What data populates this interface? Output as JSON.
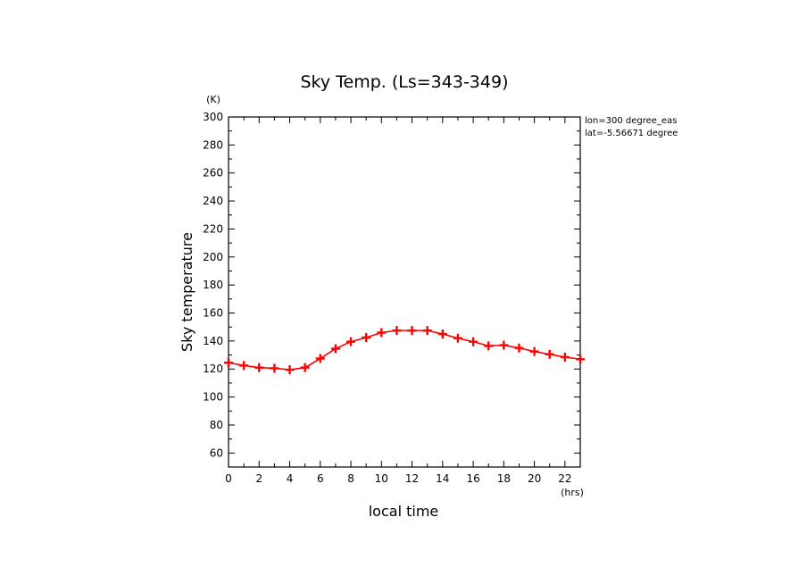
{
  "chart_data": {
    "type": "line",
    "title": "Sky Temp. (Ls=343-349)",
    "xlabel": "local time",
    "ylabel": "Sky temperature",
    "x_unit": "(hrs)",
    "y_unit": "(K)",
    "xlim": [
      0,
      23
    ],
    "ylim": [
      50,
      300
    ],
    "x_ticks": [
      0,
      2,
      4,
      6,
      8,
      10,
      12,
      14,
      16,
      18,
      20,
      22
    ],
    "y_ticks": [
      60,
      80,
      100,
      120,
      140,
      160,
      180,
      200,
      220,
      240,
      260,
      280,
      300
    ],
    "annotations": [
      "lon=300 degree_eas",
      "lat=-5.56671 degree"
    ],
    "grid": false,
    "series": [
      {
        "color": "#ff0000",
        "marker": "plus",
        "x": [
          0,
          1,
          2,
          3,
          4,
          5,
          6,
          7,
          8,
          9,
          10,
          11,
          12,
          13,
          14,
          15,
          16,
          17,
          18,
          19,
          20,
          21,
          22,
          23
        ],
        "y": [
          124.5,
          122.5,
          121,
          120.5,
          119.5,
          121,
          127.5,
          134.5,
          139.5,
          142.5,
          146,
          147.5,
          147.5,
          147.5,
          145,
          142,
          139.5,
          136.5,
          137,
          135,
          132.5,
          130.5,
          128.5,
          127
        ]
      }
    ]
  }
}
